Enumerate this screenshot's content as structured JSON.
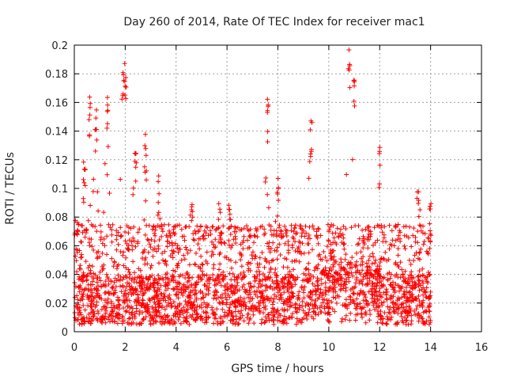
{
  "chart_data": {
    "type": "scatter",
    "title": "Day 260 of 2014, Rate Of TEC Index for receiver mac1",
    "xlabel": "GPS time / hours",
    "ylabel": "ROTI / TECUs",
    "xlim": [
      0,
      16
    ],
    "ylim": [
      0,
      0.2
    ],
    "x_ticks": [
      0,
      2,
      4,
      6,
      8,
      10,
      12,
      14,
      16
    ],
    "y_ticks": [
      0,
      0.02,
      0.04,
      0.06,
      0.08,
      0.1,
      0.12,
      0.14,
      0.16,
      0.18,
      0.2
    ],
    "x_tick_labels": [
      "0",
      "2",
      "4",
      "6",
      "8",
      "10",
      "12",
      "14",
      "16"
    ],
    "y_tick_labels": [
      "0",
      "0.02",
      "0.04",
      "0.06",
      "0.08",
      "0.1",
      "0.12",
      "0.14",
      "0.16",
      "0.18",
      "0.2"
    ],
    "grid": true,
    "marker": "+",
    "color": "#ff0000",
    "series": [
      {
        "name": "ROTI",
        "x_range": [
          0,
          14
        ],
        "bulk_range": [
          0.005,
          0.04
        ],
        "envelope_peaks": [
          {
            "x": 0.1,
            "y": 0.085
          },
          {
            "x": 0.4,
            "y": 0.12
          },
          {
            "x": 0.6,
            "y": 0.165
          },
          {
            "x": 0.85,
            "y": 0.155
          },
          {
            "x": 1.3,
            "y": 0.168
          },
          {
            "x": 1.9,
            "y": 0.188
          },
          {
            "x": 2.0,
            "y": 0.195
          },
          {
            "x": 2.4,
            "y": 0.13
          },
          {
            "x": 2.8,
            "y": 0.138
          },
          {
            "x": 3.3,
            "y": 0.11
          },
          {
            "x": 4.6,
            "y": 0.1
          },
          {
            "x": 5.7,
            "y": 0.09
          },
          {
            "x": 6.1,
            "y": 0.09
          },
          {
            "x": 7.6,
            "y": 0.165
          },
          {
            "x": 8.0,
            "y": 0.11
          },
          {
            "x": 9.3,
            "y": 0.15
          },
          {
            "x": 10.8,
            "y": 0.198
          },
          {
            "x": 11.0,
            "y": 0.18
          },
          {
            "x": 12.0,
            "y": 0.13
          },
          {
            "x": 13.5,
            "y": 0.105
          },
          {
            "x": 14.0,
            "y": 0.09
          }
        ]
      }
    ]
  }
}
